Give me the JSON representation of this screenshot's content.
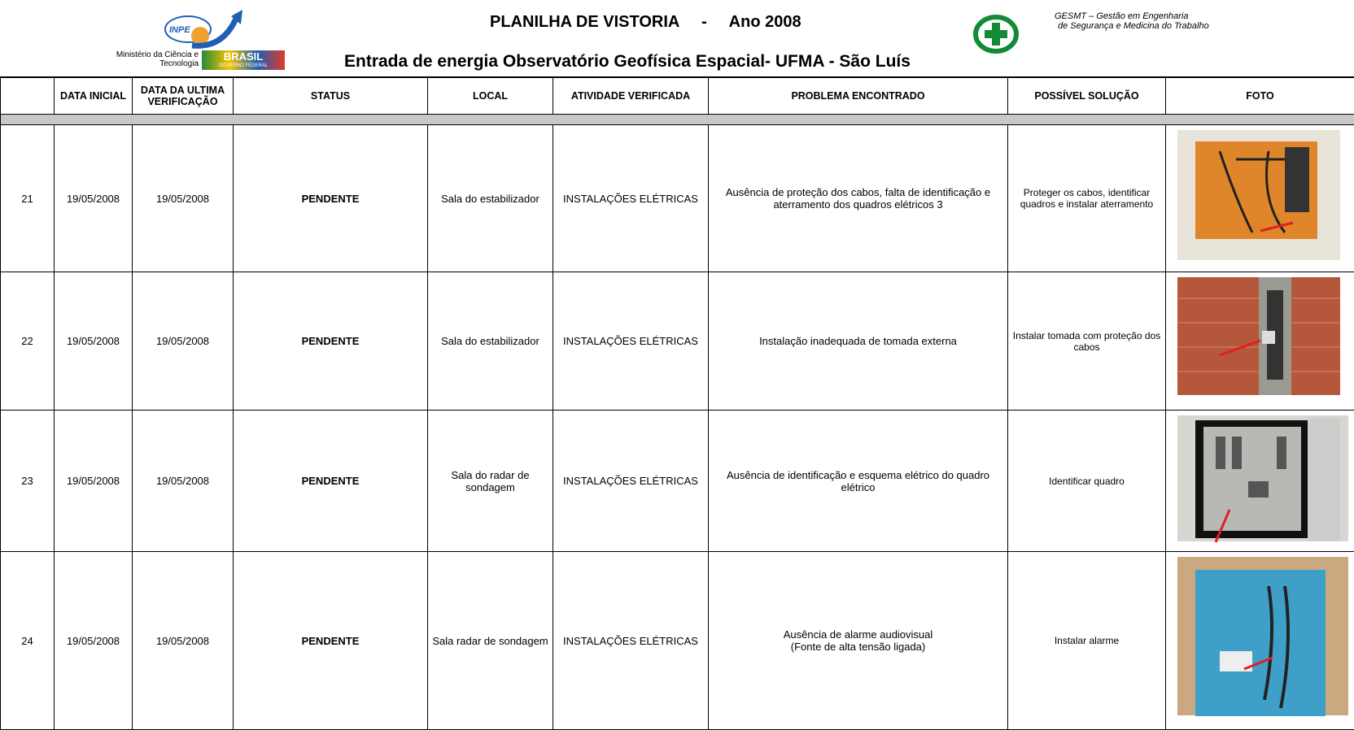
{
  "header": {
    "logo_inpe": "INPE",
    "ministry": "Ministério da Ciência e Tecnologia",
    "brasil": "BRASIL",
    "governo": "GOVERNO FEDERAL",
    "title": "PLANILHA DE VISTORIA",
    "separator": "-",
    "year": "Ano 2008",
    "subtitle": "Entrada de energia Observatório Geofísica Espacial- UFMA - São Luís",
    "gesmt_line1": "GESMT – Gestão em Engenharia",
    "gesmt_line2": "de Segurança e Medicina do Trabalho"
  },
  "table": {
    "columns": [
      "DATA INICIAL",
      "DATA DA ULTIMA VERIFICAÇÃO",
      "STATUS",
      "LOCAL",
      "ATIVIDADE VERIFICADA",
      "PROBLEMA ENCONTRADO",
      "POSSÍVEL SOLUÇÃO",
      "FOTO"
    ],
    "rows": [
      [
        "21",
        "19/05/2008",
        "19/05/2008",
        "PENDENTE",
        "Sala do estabilizador",
        "INSTALAÇÕES ELÉTRICAS",
        "Ausência de proteção dos cabos, falta de identificação  e  aterramento dos quadros elétricos 3",
        "Proteger os cabos, identificar quadros e instalar aterramento"
      ],
      [
        "22",
        "19/05/2008",
        "19/05/2008",
        "PENDENTE",
        "Sala do estabilizador",
        "INSTALAÇÕES ELÉTRICAS",
        "Instalação inadequada de tomada externa",
        "Instalar tomada com proteção dos cabos"
      ],
      [
        "23",
        "19/05/2008",
        "19/05/2008",
        "PENDENTE",
        "Sala do radar de sondagem",
        "INSTALAÇÕES ELÉTRICAS",
        "Ausência de identificação  e esquema elétrico do quadro elétrico",
        "Identificar quadro"
      ],
      [
        "24",
        "19/05/2008",
        "19/05/2008",
        "PENDENTE",
        "Sala  radar de sondagem",
        "INSTALAÇÕES ELÉTRICAS",
        "Ausência de alarme audiovisual\n(Fonte de alta tensão ligada)",
        "Instalar alarme"
      ]
    ]
  }
}
